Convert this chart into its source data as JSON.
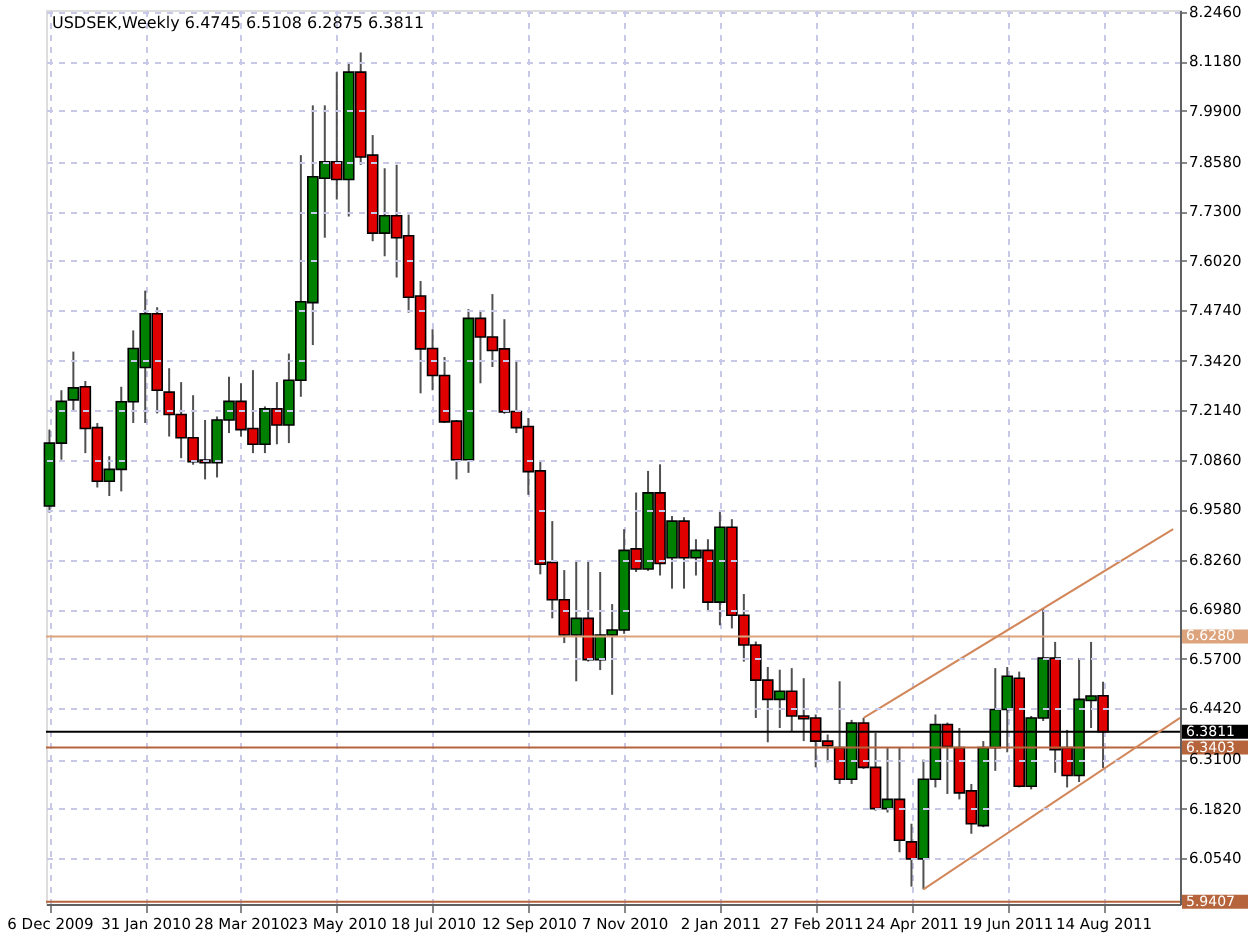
{
  "chart_data": {
    "type": "candlestick",
    "title": "USDSEK,Weekly  6.4745 6.5108 6.2875 6.3811",
    "x": [
      "2009-12-06",
      "2009-12-13",
      "2009-12-20",
      "2009-12-27",
      "2010-01-03",
      "2010-01-10",
      "2010-01-17",
      "2010-01-24",
      "2010-01-31",
      "2010-02-07",
      "2010-02-14",
      "2010-02-21",
      "2010-02-28",
      "2010-03-07",
      "2010-03-14",
      "2010-03-21",
      "2010-03-28",
      "2010-04-04",
      "2010-04-11",
      "2010-04-18",
      "2010-04-25",
      "2010-05-02",
      "2010-05-09",
      "2010-05-16",
      "2010-05-23",
      "2010-05-30",
      "2010-06-06",
      "2010-06-13",
      "2010-06-20",
      "2010-06-27",
      "2010-07-04",
      "2010-07-11",
      "2010-07-18",
      "2010-07-25",
      "2010-08-01",
      "2010-08-08",
      "2010-08-15",
      "2010-08-22",
      "2010-08-29",
      "2010-09-05",
      "2010-09-12",
      "2010-09-19",
      "2010-09-26",
      "2010-10-03",
      "2010-10-10",
      "2010-10-17",
      "2010-10-24",
      "2010-10-31",
      "2010-11-07",
      "2010-11-14",
      "2010-11-21",
      "2010-11-28",
      "2010-12-05",
      "2010-12-12",
      "2010-12-19",
      "2010-12-26",
      "2011-01-02",
      "2011-01-09",
      "2011-01-16",
      "2011-01-23",
      "2011-01-30",
      "2011-02-06",
      "2011-02-13",
      "2011-02-20",
      "2011-02-27",
      "2011-03-06",
      "2011-03-13",
      "2011-03-20",
      "2011-03-27",
      "2011-04-03",
      "2011-04-10",
      "2011-04-17",
      "2011-04-24",
      "2011-05-01",
      "2011-05-08",
      "2011-05-15",
      "2011-05-22",
      "2011-05-29",
      "2011-06-05",
      "2011-06-12",
      "2011-06-19",
      "2011-06-26",
      "2011-07-03",
      "2011-07-10",
      "2011-07-17",
      "2011-07-24",
      "2011-07-31",
      "2011-08-07",
      "2011-08-14"
    ],
    "ohlc": [
      [
        6.966,
        7.164,
        6.949,
        7.129
      ],
      [
        7.129,
        7.266,
        7.086,
        7.237
      ],
      [
        7.241,
        7.366,
        7.212,
        7.272
      ],
      [
        7.275,
        7.29,
        7.103,
        7.167
      ],
      [
        7.169,
        7.181,
        7.014,
        7.03
      ],
      [
        7.03,
        7.095,
        6.992,
        7.061
      ],
      [
        7.061,
        7.275,
        7.004,
        7.236
      ],
      [
        7.236,
        7.421,
        7.181,
        7.374
      ],
      [
        7.325,
        7.524,
        7.181,
        7.464
      ],
      [
        7.464,
        7.481,
        7.206,
        7.266
      ],
      [
        7.261,
        7.323,
        7.146,
        7.203
      ],
      [
        7.203,
        7.287,
        7.09,
        7.143
      ],
      [
        7.143,
        7.253,
        7.073,
        7.081
      ],
      [
        7.085,
        7.189,
        7.035,
        7.078
      ],
      [
        7.078,
        7.198,
        7.04,
        7.189
      ],
      [
        7.189,
        7.301,
        7.155,
        7.237
      ],
      [
        7.237,
        7.284,
        7.146,
        7.164
      ],
      [
        7.167,
        7.318,
        7.103,
        7.126
      ],
      [
        7.126,
        7.224,
        7.103,
        7.218
      ],
      [
        7.218,
        7.287,
        7.126,
        7.176
      ],
      [
        7.176,
        7.361,
        7.129,
        7.292
      ],
      [
        7.292,
        7.875,
        7.249,
        7.495
      ],
      [
        7.493,
        8.004,
        7.383,
        7.819
      ],
      [
        7.815,
        8.004,
        7.661,
        7.858
      ],
      [
        7.858,
        8.09,
        7.76,
        7.812
      ],
      [
        7.812,
        8.116,
        7.716,
        8.09
      ],
      [
        8.09,
        8.141,
        7.85,
        7.87
      ],
      [
        7.875,
        7.927,
        7.652,
        7.673
      ],
      [
        7.673,
        7.841,
        7.613,
        7.718
      ],
      [
        7.718,
        7.85,
        7.558,
        7.661
      ],
      [
        7.666,
        7.721,
        7.467,
        7.507
      ],
      [
        7.51,
        7.549,
        7.258,
        7.373
      ],
      [
        7.374,
        7.424,
        7.266,
        7.304
      ],
      [
        7.304,
        7.352,
        7.181,
        7.184
      ],
      [
        7.186,
        7.189,
        7.035,
        7.086
      ],
      [
        7.086,
        7.476,
        7.052,
        7.452
      ],
      [
        7.452,
        7.469,
        7.284,
        7.404
      ],
      [
        7.404,
        7.515,
        7.326,
        7.369
      ],
      [
        7.373,
        7.45,
        7.205,
        7.21
      ],
      [
        7.211,
        7.344,
        7.155,
        7.169
      ],
      [
        7.172,
        7.194,
        6.995,
        7.055
      ],
      [
        7.057,
        7.081,
        6.789,
        6.815
      ],
      [
        6.82,
        6.927,
        6.675,
        6.723
      ],
      [
        6.723,
        6.8,
        6.611,
        6.632
      ],
      [
        6.632,
        6.824,
        6.512,
        6.675
      ],
      [
        6.675,
        6.824,
        6.563,
        6.568
      ],
      [
        6.568,
        6.795,
        6.541,
        6.632
      ],
      [
        6.632,
        6.712,
        6.477,
        6.645
      ],
      [
        6.645,
        6.906,
        6.635,
        6.851
      ],
      [
        6.855,
        7.001,
        6.795,
        6.803
      ],
      [
        6.803,
        7.057,
        6.798,
        7.0
      ],
      [
        7.0,
        7.074,
        6.786,
        6.817
      ],
      [
        6.832,
        6.94,
        6.752,
        6.927
      ],
      [
        6.927,
        6.937,
        6.752,
        6.832
      ],
      [
        6.832,
        6.88,
        6.786,
        6.851
      ],
      [
        6.851,
        6.88,
        6.692,
        6.717
      ],
      [
        6.717,
        6.954,
        6.657,
        6.911
      ],
      [
        6.911,
        6.932,
        6.649,
        6.683
      ],
      [
        6.683,
        6.738,
        6.563,
        6.606
      ],
      [
        6.606,
        6.615,
        6.417,
        6.515
      ],
      [
        6.515,
        6.549,
        6.354,
        6.465
      ],
      [
        6.465,
        6.542,
        6.391,
        6.486
      ],
      [
        6.486,
        6.546,
        6.383,
        6.422
      ],
      [
        6.422,
        6.52,
        6.357,
        6.415
      ],
      [
        6.417,
        6.426,
        6.289,
        6.357
      ],
      [
        6.357,
        6.374,
        6.302,
        6.345
      ],
      [
        6.34,
        6.512,
        6.246,
        6.258
      ],
      [
        6.258,
        6.412,
        6.246,
        6.404
      ],
      [
        6.404,
        6.417,
        6.285,
        6.289
      ],
      [
        6.289,
        6.378,
        6.177,
        6.182
      ],
      [
        6.182,
        6.34,
        6.172,
        6.206
      ],
      [
        6.206,
        6.34,
        6.069,
        6.1
      ],
      [
        6.096,
        6.143,
        5.98,
        6.052
      ],
      [
        6.052,
        6.309,
        5.973,
        6.258
      ],
      [
        6.258,
        6.426,
        6.237,
        6.4
      ],
      [
        6.4,
        6.405,
        6.22,
        6.343
      ],
      [
        6.34,
        6.391,
        6.206,
        6.223
      ],
      [
        6.228,
        6.246,
        6.117,
        6.143
      ],
      [
        6.138,
        6.357,
        6.134,
        6.34
      ],
      [
        6.34,
        6.546,
        6.28,
        6.439
      ],
      [
        6.439,
        6.549,
        6.328,
        6.525
      ],
      [
        6.52,
        6.537,
        6.237,
        6.24
      ],
      [
        6.24,
        6.422,
        6.232,
        6.417
      ],
      [
        6.417,
        6.7,
        6.409,
        6.572
      ],
      [
        6.572,
        6.614,
        6.275,
        6.335
      ],
      [
        6.34,
        6.386,
        6.237,
        6.268
      ],
      [
        6.268,
        6.572,
        6.251,
        6.465
      ],
      [
        6.462,
        6.614,
        6.391,
        6.474
      ],
      [
        6.4745,
        6.5108,
        6.2875,
        6.3811
      ]
    ],
    "series": [
      {
        "type": "line",
        "color": "#d2875a",
        "x": [
          "2011-03-27",
          "2011-09-24"
        ],
        "values": [
          6.417,
          6.906
        ]
      },
      {
        "type": "line",
        "color": "#d2875a",
        "x": [
          "2011-05-01",
          "2011-09-28"
        ],
        "values": [
          5.973,
          6.417
        ]
      }
    ],
    "xlim": [
      "2009-12-04",
      "2011-09-28"
    ],
    "xticks": [
      {
        "value": "2009-12-06",
        "label": "6 Dec 2009"
      },
      {
        "value": "2010-01-31",
        "label": "31 Jan 2010"
      },
      {
        "value": "2010-03-28",
        "label": "28 Mar 2010"
      },
      {
        "value": "2010-05-23",
        "label": "23 May 2010"
      },
      {
        "value": "2010-07-18",
        "label": "18 Jul 2010"
      },
      {
        "value": "2010-09-12",
        "label": "12 Sep 2010"
      },
      {
        "value": "2010-11-07",
        "label": "7 Nov 2010"
      },
      {
        "value": "2011-01-02",
        "label": "2 Jan 2011"
      },
      {
        "value": "2011-02-27",
        "label": "27 Feb 2011"
      },
      {
        "value": "2011-04-24",
        "label": "24 Apr 2011"
      },
      {
        "value": "2011-06-19",
        "label": "19 Jun 2011"
      },
      {
        "value": "2011-08-14",
        "label": "14 Aug 2011"
      }
    ],
    "ylim": [
      5.935,
      8.251
    ],
    "yticks": [
      {
        "value": 8.246,
        "label": "8.2460"
      },
      {
        "value": 8.118,
        "label": "8.1180"
      },
      {
        "value": 7.99,
        "label": "7.9900"
      },
      {
        "value": 7.858,
        "label": "7.8580"
      },
      {
        "value": 7.73,
        "label": "7.7300"
      },
      {
        "value": 7.602,
        "label": "7.6020"
      },
      {
        "value": 7.474,
        "label": "7.4740"
      },
      {
        "value": 7.342,
        "label": "7.3420"
      },
      {
        "value": 7.214,
        "label": "7.2140"
      },
      {
        "value": 7.086,
        "label": "7.0860"
      },
      {
        "value": 6.958,
        "label": "6.9580"
      },
      {
        "value": 6.826,
        "label": "6.8260"
      },
      {
        "value": 6.698,
        "label": "6.6980"
      },
      {
        "value": 6.57,
        "label": "6.5700"
      },
      {
        "value": 6.442,
        "label": "6.4420"
      },
      {
        "value": 6.31,
        "label": "6.3100"
      },
      {
        "value": 6.182,
        "label": "6.1820"
      },
      {
        "value": 6.054,
        "label": "6.0540"
      }
    ],
    "ref_lines": [
      {
        "axis": "y",
        "value": 6.628,
        "label": "6.6280",
        "color": "#dca37c"
      },
      {
        "axis": "y",
        "value": 6.3811,
        "label": "6.3811",
        "color": "#000000"
      },
      {
        "axis": "y",
        "value": 6.3403,
        "label": "6.3403",
        "color": "#b5643c"
      },
      {
        "axis": "y",
        "value": 5.9407,
        "label": "5.9407",
        "color": "#b5643c"
      }
    ],
    "grid": true
  }
}
